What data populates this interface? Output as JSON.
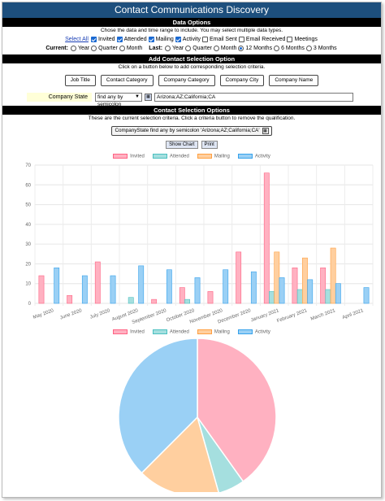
{
  "title": "Contact Communications Discovery",
  "data_options": {
    "heading": "Data Options",
    "instructions": "Chose the data and time range to include. You may select multiple data types.",
    "select_all": "Select All",
    "types": [
      {
        "label": "Invited",
        "checked": true
      },
      {
        "label": "Attended",
        "checked": true
      },
      {
        "label": "Mailing",
        "checked": true
      },
      {
        "label": "Activity",
        "checked": true
      },
      {
        "label": "Email Sent",
        "checked": false
      },
      {
        "label": "Email Received",
        "checked": false
      },
      {
        "label": "Meetings",
        "checked": false
      }
    ],
    "current_label": "Current:",
    "current_options": [
      {
        "label": "Year",
        "selected": false
      },
      {
        "label": "Quarter",
        "selected": false
      },
      {
        "label": "Month",
        "selected": false
      }
    ],
    "last_label": "Last:",
    "last_options": [
      {
        "label": "Year",
        "selected": false
      },
      {
        "label": "Quarter",
        "selected": false
      },
      {
        "label": "Month",
        "selected": false
      },
      {
        "label": "12 Months",
        "selected": true
      },
      {
        "label": "6 Months",
        "selected": false
      },
      {
        "label": "3 Months",
        "selected": false
      }
    ]
  },
  "add_contact": {
    "heading": "Add Contact Selection Option",
    "instructions": "Click on a button below to add corresponding selection criteria.",
    "buttons": [
      "Job Title",
      "Contact Category",
      "Company Category",
      "Company City",
      "Company Name"
    ],
    "state_label": "Company State",
    "state_select": "find any by semicolon",
    "state_value": "Arizona;AZ;California;CA"
  },
  "contact_selection": {
    "heading": "Contact Selection Options",
    "instructions": "These are the current selection criteria. Click a criteria button to remove the qualification.",
    "criteria": "CompanyState find any by semicolon 'Arizona;AZ;California;CA'",
    "show_chart": "Show Chart",
    "print": "Print"
  },
  "colors": {
    "Invited": "#ffb1c1",
    "Attended": "#a5dfdf",
    "Mailing": "#ffcf9f",
    "Activity": "#9ad0f5"
  },
  "chart_data": [
    {
      "type": "bar",
      "categories": [
        "May 2020",
        "June 2020",
        "July 2020",
        "August 2020",
        "September 2020",
        "October 2020",
        "November 2020",
        "December 2020",
        "January 2021",
        "February 2021",
        "March 2021",
        "April 2021"
      ],
      "series": [
        {
          "name": "Invited",
          "values": [
            14,
            4,
            21,
            0,
            2,
            8,
            6,
            26,
            66,
            18,
            18,
            0
          ]
        },
        {
          "name": "Attended",
          "values": [
            0,
            0,
            0,
            3,
            0,
            2,
            0,
            0,
            6,
            7,
            7,
            0
          ]
        },
        {
          "name": "Mailing",
          "values": [
            0,
            0,
            0,
            0,
            0,
            0,
            0,
            0,
            26,
            23,
            28,
            0
          ]
        },
        {
          "name": "Activity",
          "values": [
            18,
            14,
            14,
            19,
            17,
            13,
            17,
            16,
            13,
            12,
            10,
            8
          ]
        }
      ],
      "ylim": [
        0,
        70
      ],
      "yticks": [
        0,
        10,
        20,
        30,
        40,
        50,
        60,
        70
      ],
      "grid": true,
      "legend": "top"
    },
    {
      "type": "pie",
      "labels": [
        "Invited",
        "Attended",
        "Mailing",
        "Activity"
      ],
      "values": [
        183,
        25,
        77,
        171
      ],
      "legend": "top"
    }
  ]
}
